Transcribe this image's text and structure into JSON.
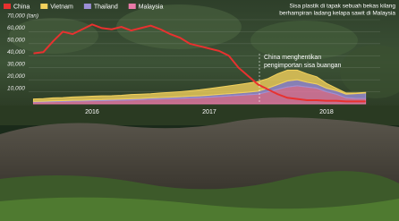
{
  "chart_data": {
    "type": "area",
    "categories": [
      null,
      null,
      null,
      null,
      null,
      null,
      "2016",
      null,
      null,
      null,
      null,
      null,
      null,
      null,
      null,
      null,
      null,
      null,
      "2017",
      null,
      null,
      null,
      null,
      null,
      null,
      null,
      null,
      null,
      null,
      null,
      "2018",
      null,
      null,
      null,
      null
    ],
    "series": [
      {
        "name": "China",
        "color": "#e8312f",
        "type": "line",
        "values": [
          42000,
          43000,
          52000,
          60000,
          58000,
          62000,
          66000,
          63000,
          62000,
          64000,
          61000,
          63000,
          65000,
          62000,
          58000,
          55000,
          50000,
          48000,
          46000,
          44000,
          40000,
          30000,
          23000,
          16000,
          12000,
          8000,
          5000,
          4000,
          3000,
          3000,
          2500,
          2500,
          2000,
          2000,
          2000
        ]
      },
      {
        "name": "Vietnam",
        "color": "#f2d15c",
        "values": [
          2000,
          2200,
          2500,
          2500,
          2800,
          3000,
          3000,
          3200,
          3000,
          3200,
          3500,
          3500,
          3500,
          3800,
          4000,
          4200,
          4500,
          5000,
          5500,
          6000,
          6500,
          7000,
          7500,
          8000,
          8000,
          9000,
          9000,
          8000,
          7000,
          6000,
          4000,
          2000,
          1000,
          500,
          500
        ]
      },
      {
        "name": "Thailand",
        "color": "#9c8fd6",
        "values": [
          500,
          500,
          600,
          600,
          700,
          700,
          800,
          800,
          900,
          900,
          1000,
          1000,
          1100,
          1200,
          1300,
          1400,
          1500,
          1600,
          1700,
          1800,
          1900,
          2000,
          2200,
          2500,
          3000,
          4000,
          5000,
          5000,
          4000,
          3500,
          3000,
          3000,
          3000,
          4000,
          4500
        ]
      },
      {
        "name": "Malaysia",
        "color": "#e87aa8",
        "values": [
          1500,
          1600,
          1800,
          2000,
          2200,
          2300,
          2500,
          2600,
          2800,
          3000,
          3200,
          3500,
          3800,
          4000,
          4200,
          4500,
          4800,
          5000,
          5500,
          6000,
          6500,
          7000,
          7500,
          8000,
          10000,
          12000,
          14000,
          15000,
          14000,
          13000,
          10000,
          8000,
          5000,
          4500,
          4500
        ]
      }
    ],
    "ylim": [
      0,
      70000
    ],
    "yticks": [
      {
        "value": 10000,
        "label": "10,000"
      },
      {
        "value": 20000,
        "label": "20,000"
      },
      {
        "value": 30000,
        "label": "30,000"
      },
      {
        "value": 40000,
        "label": "40,000"
      },
      {
        "value": 50000,
        "label": "50,000"
      },
      {
        "value": 60000,
        "label": "60,000"
      },
      {
        "value": 70000,
        "label": "70,000 (tan)"
      }
    ],
    "grid": true,
    "caption": [
      "Sisa plastik di tapak sebuah bekas kilang",
      "berhampiran ladang kelapa sawit di Malaysia"
    ],
    "annotation": [
      "China menghentikan",
      "pengimportan sisa buangan"
    ]
  }
}
